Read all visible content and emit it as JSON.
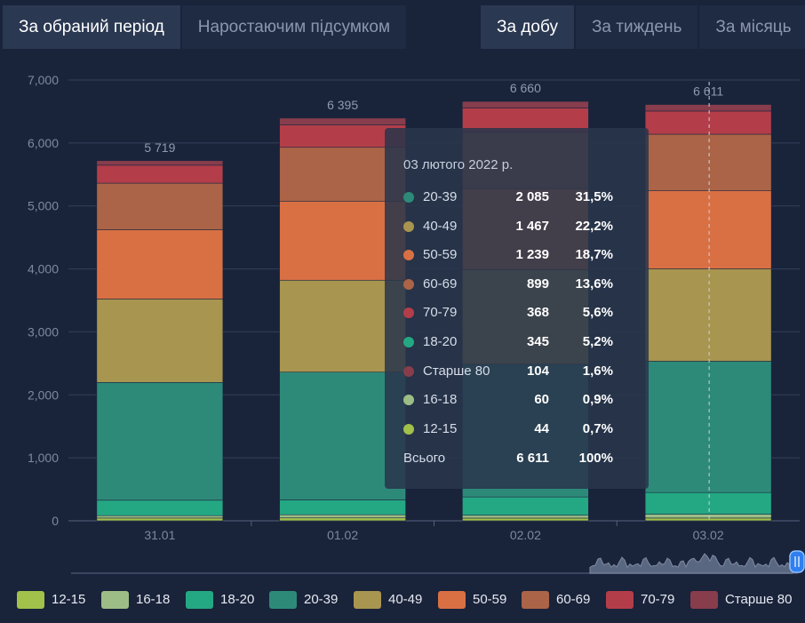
{
  "tabs_left": [
    {
      "label": "За обраний період",
      "active": true
    },
    {
      "label": "Наростаючим підсумком",
      "active": false
    }
  ],
  "tabs_right": [
    {
      "label": "За добу",
      "active": true
    },
    {
      "label": "За тиждень",
      "active": false
    },
    {
      "label": "За місяць",
      "active": false
    }
  ],
  "chart_data": {
    "type": "bar",
    "stacked": true,
    "categories": [
      "31.01",
      "01.02",
      "02.02",
      "03.02"
    ],
    "totals": [
      "5 719",
      "6 395",
      "6 660",
      "6 611"
    ],
    "ylim": [
      0,
      7000
    ],
    "yticks": [
      "0",
      "1,000",
      "2,000",
      "3,000",
      "4,000",
      "5,000",
      "6,000",
      "7,000"
    ],
    "grid": true,
    "legend_position": "bottom",
    "series": [
      {
        "name": "12-15",
        "color": "#a2c14a",
        "values": [
          44,
          46,
          43,
          44
        ]
      },
      {
        "name": "16-18",
        "color": "#9dbd86",
        "values": [
          38,
          50,
          45,
          60
        ]
      },
      {
        "name": "18-20",
        "color": "#24a883",
        "values": [
          245,
          235,
          291,
          345
        ]
      },
      {
        "name": "20-39",
        "color": "#2d8a79",
        "values": [
          1870,
          2030,
          2107,
          2085
        ]
      },
      {
        "name": "40-49",
        "color": "#a8954f",
        "values": [
          1325,
          1460,
          1500,
          1467
        ]
      },
      {
        "name": "50-59",
        "color": "#d97044",
        "values": [
          1100,
          1250,
          1292,
          1239
        ]
      },
      {
        "name": "60-69",
        "color": "#ab6447",
        "values": [
          740,
          860,
          892,
          899
        ]
      },
      {
        "name": "70-79",
        "color": "#b43d4a",
        "values": [
          285,
          355,
          385,
          368
        ]
      },
      {
        "name": "Старше 80",
        "color": "#873d4c",
        "values": [
          72,
          109,
          105,
          104
        ]
      }
    ]
  },
  "tooltip": {
    "date": "03 лютого 2022 р.",
    "rows": [
      {
        "name": "20-39",
        "value": "2 085",
        "pct": "31,5%",
        "color": "#2d8a79"
      },
      {
        "name": "40-49",
        "value": "1 467",
        "pct": "22,2%",
        "color": "#a8954f"
      },
      {
        "name": "50-59",
        "value": "1 239",
        "pct": "18,7%",
        "color": "#d97044"
      },
      {
        "name": "60-69",
        "value": "899",
        "pct": "13,6%",
        "color": "#ab6447"
      },
      {
        "name": "70-79",
        "value": "368",
        "pct": "5,6%",
        "color": "#b43d4a"
      },
      {
        "name": "18-20",
        "value": "345",
        "pct": "5,2%",
        "color": "#24a883"
      },
      {
        "name": "Старше 80",
        "value": "104",
        "pct": "1,6%",
        "color": "#873d4c"
      },
      {
        "name": "16-18",
        "value": "60",
        "pct": "0,9%",
        "color": "#9dbd86"
      },
      {
        "name": "12-15",
        "value": "44",
        "pct": "0,7%",
        "color": "#a2c14a"
      }
    ],
    "total_label": "Всього",
    "total_value": "6 611",
    "total_pct": "100%"
  }
}
